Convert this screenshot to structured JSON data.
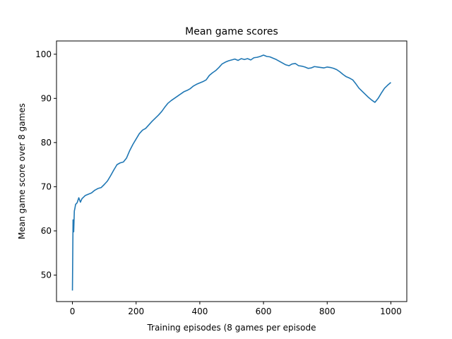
{
  "chart_data": {
    "type": "line",
    "title": "Mean game scores",
    "xlabel": "Training episodes (8 games per episode",
    "ylabel": "Mean game score over 8 games",
    "xlim": [
      -50,
      1050
    ],
    "ylim": [
      44,
      103
    ],
    "xticks": [
      0,
      200,
      400,
      600,
      800,
      1000
    ],
    "yticks": [
      50,
      60,
      70,
      80,
      90,
      100
    ],
    "grid": false,
    "legend": "none",
    "series": [
      {
        "color": "#1f77b4",
        "x": [
          0,
          2,
          4,
          6,
          8,
          10,
          15,
          20,
          25,
          30,
          40,
          50,
          60,
          70,
          80,
          90,
          100,
          110,
          120,
          130,
          140,
          150,
          160,
          170,
          180,
          190,
          200,
          210,
          220,
          230,
          240,
          250,
          260,
          270,
          280,
          290,
          300,
          310,
          320,
          330,
          340,
          350,
          360,
          370,
          380,
          390,
          400,
          410,
          420,
          430,
          440,
          450,
          460,
          470,
          480,
          490,
          500,
          510,
          520,
          530,
          540,
          550,
          560,
          570,
          580,
          590,
          600,
          610,
          620,
          630,
          640,
          650,
          660,
          670,
          680,
          690,
          700,
          710,
          720,
          730,
          740,
          750,
          760,
          770,
          780,
          790,
          800,
          810,
          820,
          830,
          840,
          850,
          860,
          870,
          880,
          890,
          900,
          910,
          920,
          930,
          940,
          950,
          960,
          970,
          980,
          990,
          1000
        ],
        "y": [
          46.5,
          62.5,
          59.8,
          64.5,
          65.2,
          66,
          66.4,
          67.5,
          66.5,
          67.3,
          68,
          68.3,
          68.6,
          69.2,
          69.6,
          69.8,
          70.5,
          71.3,
          72.5,
          73.8,
          75,
          75.4,
          75.6,
          76.5,
          78.2,
          79.6,
          80.8,
          82,
          82.8,
          83.2,
          84,
          84.8,
          85.5,
          86.2,
          87,
          88,
          88.9,
          89.5,
          90,
          90.5,
          91,
          91.5,
          91.8,
          92.2,
          92.8,
          93.2,
          93.5,
          93.8,
          94.2,
          95.2,
          95.8,
          96.3,
          97,
          97.8,
          98.2,
          98.5,
          98.7,
          98.9,
          98.6,
          99,
          98.8,
          99,
          98.7,
          99.2,
          99.3,
          99.5,
          99.8,
          99.5,
          99.4,
          99.1,
          98.8,
          98.4,
          98,
          97.6,
          97.4,
          97.8,
          97.9,
          97.4,
          97.3,
          97.1,
          96.8,
          96.9,
          97.2,
          97.1,
          97,
          96.9,
          97.1,
          97,
          96.8,
          96.5,
          96,
          95.4,
          94.9,
          94.6,
          94.2,
          93.3,
          92.3,
          91.6,
          90.9,
          90.2,
          89.6,
          89.1,
          90,
          91.2,
          92.3,
          93,
          93.6
        ]
      }
    ]
  }
}
